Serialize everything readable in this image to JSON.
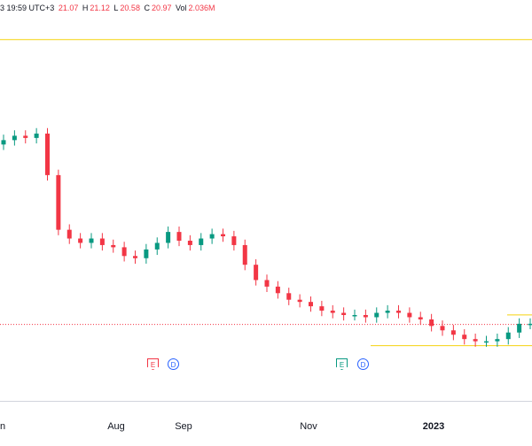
{
  "legend": {
    "date_time": "3 19:59 UTC+3",
    "o_label": "",
    "o_value": "21.07",
    "h_label": "H",
    "h_value": "21.12",
    "l_label": "L",
    "l_value": "20.58",
    "c_label": "C",
    "c_value": "20.97",
    "vol_label": "Vol",
    "vol_value": "2.036M"
  },
  "colors": {
    "up": "#089981",
    "down": "#f23645",
    "level_line": "#f5d30f",
    "price_line": "#f23645",
    "dividend": "#2962ff"
  },
  "events": [
    {
      "type": "earnings",
      "label": "E",
      "color": "#f23645",
      "position_month": "Aug"
    },
    {
      "type": "dividend",
      "label": "D",
      "color": "#2962ff",
      "position_month": "Aug"
    },
    {
      "type": "earnings",
      "label": "E",
      "color": "#089981",
      "position_month": "Nov"
    },
    {
      "type": "dividend",
      "label": "D",
      "color": "#2962ff",
      "position_month": "Nov"
    }
  ],
  "x_axis_labels": [
    "n",
    "Aug",
    "Sep",
    "Nov",
    "2023"
  ],
  "chart_data": {
    "type": "candlestick",
    "period": "Jun 2022 – Jan 2023",
    "ylim": [
      18,
      35
    ],
    "current_price": 20.97,
    "horizontal_levels": [
      34.0,
      20.0,
      21.0
    ],
    "series": [
      {
        "name": "",
        "values": [
          29.4,
          29.6,
          29.5,
          29.7,
          27.8,
          25.3,
          24.9,
          24.7,
          24.9,
          24.6,
          24.5,
          24.1,
          24.0,
          24.4,
          24.7,
          25.2,
          24.8,
          24.6,
          24.9,
          25.1,
          25.0,
          24.6,
          23.7,
          23.0,
          22.7,
          22.4,
          22.1,
          22.0,
          21.8,
          21.6,
          21.5,
          21.4,
          21.4,
          21.3,
          21.5,
          21.6,
          21.5,
          21.3,
          21.2,
          20.9,
          20.7,
          20.5,
          20.3,
          20.2,
          20.2,
          20.3,
          20.6,
          21.0,
          21.0
        ]
      }
    ]
  }
}
